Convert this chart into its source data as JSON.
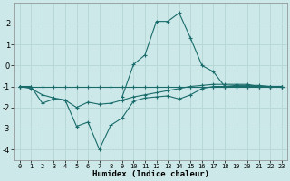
{
  "xlabel": "Humidex (Indice chaleur)",
  "bg_color": "#cce8e8",
  "grid_color": "#b8d8d8",
  "line_color": "#1a6b6b",
  "marker": "+",
  "line1_x": [
    0,
    1,
    2,
    3,
    4,
    5,
    6,
    7,
    8,
    9,
    10,
    11,
    12,
    13,
    14,
    15,
    16,
    17,
    18,
    19,
    20,
    21,
    22,
    23
  ],
  "line1_y": [
    -1,
    -1,
    -1,
    -1,
    -1,
    -1,
    -1,
    -1,
    -1,
    -1,
    -1,
    -1,
    -1,
    -1,
    -1,
    -1,
    -1,
    -1,
    -1,
    -1,
    -1,
    -1,
    -1,
    -1
  ],
  "line2_x": [
    0,
    1,
    2,
    3,
    4,
    5,
    6,
    7,
    8,
    9,
    10,
    11,
    12,
    13,
    14,
    15,
    16,
    17,
    18,
    19,
    20,
    21,
    22,
    23
  ],
  "line2_y": [
    -1.0,
    -1.1,
    -1.4,
    -1.55,
    -1.65,
    -2.0,
    -1.75,
    -1.85,
    -1.8,
    -1.65,
    -1.5,
    -1.4,
    -1.3,
    -1.2,
    -1.1,
    -1.0,
    -0.95,
    -0.9,
    -0.9,
    -0.9,
    -0.9,
    -1.0,
    -1.0,
    -1.0
  ],
  "line3_x": [
    0,
    1,
    2,
    3,
    4,
    5,
    6,
    7,
    8,
    9,
    10,
    11,
    12,
    13,
    14,
    15,
    16,
    17,
    18,
    19,
    20,
    21,
    22,
    23
  ],
  "line3_y": [
    -1.0,
    -1.0,
    -1.8,
    -1.6,
    -1.65,
    -2.9,
    -2.7,
    -4.0,
    -2.85,
    -2.5,
    -1.7,
    -1.55,
    -1.5,
    -1.45,
    -1.6,
    -1.4,
    -1.1,
    -1.0,
    -1.0,
    -1.0,
    -1.0,
    -1.0,
    -1.0,
    -1.0
  ],
  "line4_x": [
    9,
    10,
    11,
    12,
    13,
    14,
    15,
    16,
    17,
    18,
    19,
    20,
    21,
    22,
    23
  ],
  "line4_y": [
    -1.5,
    0.05,
    0.5,
    2.1,
    2.1,
    2.5,
    1.3,
    0.0,
    -0.3,
    -1.0,
    -0.95,
    -0.95,
    -0.95,
    -1.0,
    -1.0
  ],
  "xlim": [
    -0.5,
    23.5
  ],
  "ylim": [
    -4.5,
    3.0
  ],
  "yticks": [
    -4,
    -3,
    -2,
    -1,
    0,
    1,
    2
  ],
  "xticks": [
    0,
    1,
    2,
    3,
    4,
    5,
    6,
    7,
    8,
    9,
    10,
    11,
    12,
    13,
    14,
    15,
    16,
    17,
    18,
    19,
    20,
    21,
    22,
    23
  ]
}
